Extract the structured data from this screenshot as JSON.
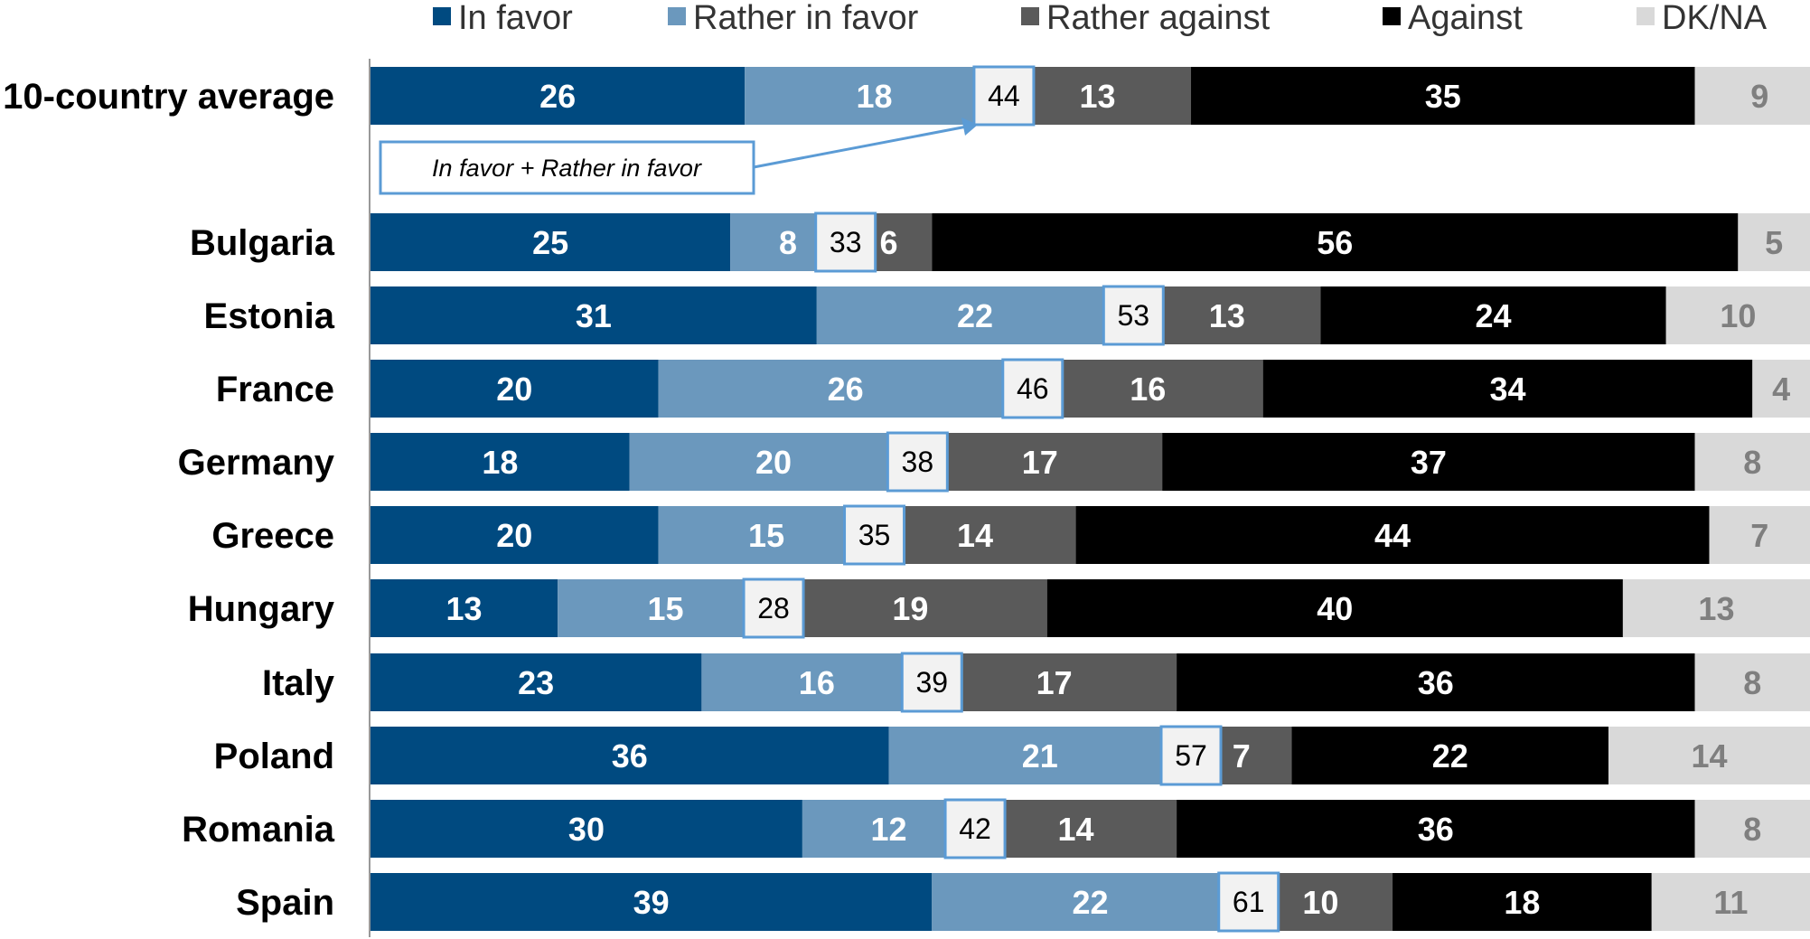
{
  "chart_data": {
    "type": "bar",
    "orientation": "horizontal",
    "stacked": true,
    "categories": [
      "% 10-country average",
      "Bulgaria",
      "Estonia",
      "France",
      "Germany",
      "Greece",
      "Hungary",
      "Italy",
      "Poland",
      "Romania",
      "Spain"
    ],
    "series": [
      {
        "name": "In favor",
        "color": "#004a80",
        "label_color": "#ffffff",
        "values": [
          26,
          25,
          31,
          20,
          18,
          20,
          13,
          23,
          36,
          30,
          39
        ]
      },
      {
        "name": "Rather in favor",
        "color": "#6b98bd",
        "label_color": "#ffffff",
        "values": [
          18,
          8,
          22,
          26,
          20,
          15,
          15,
          16,
          21,
          12,
          22
        ]
      },
      {
        "name": "Rather against",
        "color": "#5a5a5a",
        "label_color": "#ffffff",
        "values": [
          13,
          6,
          13,
          16,
          17,
          14,
          19,
          17,
          7,
          14,
          10
        ]
      },
      {
        "name": "Against",
        "color": "#000000",
        "label_color": "#ffffff",
        "values": [
          35,
          56,
          24,
          34,
          37,
          44,
          40,
          36,
          22,
          36,
          18
        ]
      },
      {
        "name": "DK/NA",
        "color": "#d9d9d9",
        "label_color": "#7f7f7f",
        "values": [
          9,
          5,
          10,
          4,
          8,
          7,
          13,
          8,
          14,
          8,
          11
        ]
      }
    ],
    "totals": {
      "label": "In favor + Rather in favor",
      "values": [
        44,
        33,
        53,
        46,
        38,
        35,
        28,
        39,
        57,
        42,
        61
      ]
    },
    "legend_position": "top",
    "grid": false,
    "xlim": [
      0,
      100
    ]
  }
}
